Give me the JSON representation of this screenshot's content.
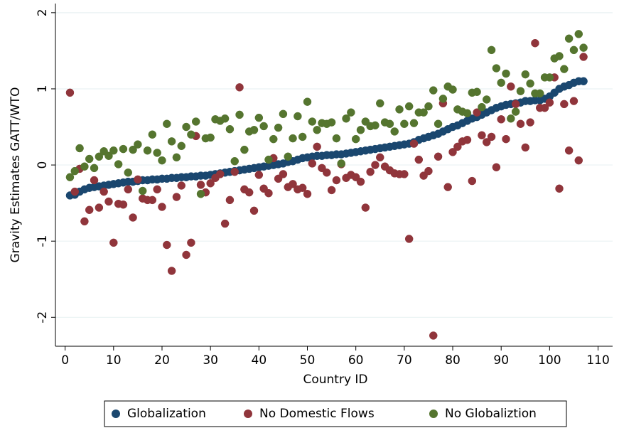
{
  "chart_data": {
    "type": "scatter",
    "x_label": "Country ID",
    "y_label": "Gravity Estimates GATT/WTO",
    "xlim": [
      -2,
      113
    ],
    "ylim": [
      -2.38,
      2.12
    ],
    "xticks": [
      0,
      10,
      20,
      30,
      40,
      50,
      60,
      70,
      80,
      90,
      100,
      110
    ],
    "yticks": [
      -2,
      -1,
      0,
      1,
      2
    ],
    "grid": true,
    "legend": "bottom",
    "x": [
      1,
      2,
      3,
      4,
      5,
      6,
      7,
      8,
      9,
      10,
      11,
      12,
      13,
      14,
      15,
      16,
      17,
      18,
      19,
      20,
      21,
      22,
      23,
      24,
      25,
      26,
      27,
      28,
      29,
      30,
      31,
      32,
      33,
      34,
      35,
      36,
      37,
      38,
      39,
      40,
      41,
      42,
      43,
      44,
      45,
      46,
      47,
      48,
      49,
      50,
      51,
      52,
      53,
      54,
      55,
      56,
      57,
      58,
      59,
      60,
      61,
      62,
      63,
      64,
      65,
      66,
      67,
      68,
      69,
      70,
      71,
      72,
      73,
      74,
      75,
      76,
      77,
      78,
      79,
      80,
      81,
      82,
      83,
      84,
      85,
      86,
      87,
      88,
      89,
      90,
      91,
      92,
      93,
      94,
      95,
      96,
      97,
      98,
      99,
      100,
      101,
      102,
      103,
      104,
      105,
      106,
      107
    ],
    "series": [
      {
        "name": "Globalization",
        "color": "#1a476f",
        "values": [
          -0.4,
          -0.39,
          -0.35,
          -0.32,
          -0.3,
          -0.29,
          -0.28,
          -0.27,
          -0.26,
          -0.25,
          -0.24,
          -0.23,
          -0.22,
          -0.22,
          -0.21,
          -0.2,
          -0.2,
          -0.19,
          -0.19,
          -0.18,
          -0.18,
          -0.17,
          -0.17,
          -0.16,
          -0.16,
          -0.15,
          -0.15,
          -0.14,
          -0.14,
          -0.13,
          -0.12,
          -0.11,
          -0.1,
          -0.09,
          -0.08,
          -0.07,
          -0.06,
          -0.05,
          -0.04,
          -0.03,
          -0.02,
          -0.01,
          0.0,
          0.01,
          0.02,
          0.04,
          0.05,
          0.07,
          0.09,
          0.1,
          0.11,
          0.12,
          0.12,
          0.13,
          0.13,
          0.14,
          0.14,
          0.15,
          0.16,
          0.17,
          0.18,
          0.19,
          0.2,
          0.21,
          0.22,
          0.23,
          0.24,
          0.25,
          0.26,
          0.27,
          0.28,
          0.3,
          0.33,
          0.35,
          0.37,
          0.39,
          0.41,
          0.44,
          0.47,
          0.5,
          0.52,
          0.55,
          0.58,
          0.61,
          0.63,
          0.66,
          0.69,
          0.72,
          0.75,
          0.77,
          0.79,
          0.8,
          0.81,
          0.82,
          0.84,
          0.84,
          0.85,
          0.85,
          0.87,
          0.9,
          0.95,
          1.0,
          1.03,
          1.05,
          1.08,
          1.1,
          1.1
        ]
      },
      {
        "name": "No Domestic Flows",
        "color": "#90353b",
        "values": [
          0.95,
          -0.35,
          -0.05,
          -0.74,
          -0.59,
          -0.2,
          -0.56,
          -0.35,
          -0.48,
          -1.02,
          -0.51,
          -0.52,
          -0.32,
          -0.69,
          -0.19,
          -0.44,
          -0.46,
          -0.46,
          -0.32,
          -0.55,
          -1.05,
          -1.39,
          -0.42,
          -0.27,
          -1.18,
          -1.02,
          0.38,
          -0.26,
          -0.36,
          -0.24,
          -0.17,
          -0.12,
          -0.77,
          -0.46,
          -0.09,
          1.02,
          -0.32,
          -0.36,
          -0.6,
          -0.13,
          -0.31,
          -0.37,
          0.09,
          -0.18,
          -0.12,
          -0.29,
          -0.25,
          -0.32,
          -0.3,
          -0.38,
          0.02,
          0.24,
          -0.04,
          -0.1,
          -0.33,
          -0.2,
          0.01,
          -0.17,
          -0.13,
          -0.16,
          -0.22,
          -0.56,
          -0.09,
          0.0,
          0.1,
          -0.02,
          -0.07,
          -0.11,
          -0.12,
          -0.12,
          -0.97,
          0.28,
          0.07,
          -0.14,
          -0.08,
          -2.24,
          0.11,
          0.81,
          -0.29,
          0.17,
          0.24,
          0.31,
          0.33,
          -0.21,
          0.69,
          0.39,
          0.3,
          0.37,
          -0.03,
          0.6,
          0.34,
          1.03,
          0.8,
          0.54,
          0.23,
          0.56,
          1.6,
          0.75,
          0.75,
          0.82,
          1.15,
          -0.31,
          0.8,
          0.19,
          0.84,
          0.06,
          1.42
        ]
      },
      {
        "name": "No Globaliztion",
        "color": "#55752f",
        "values": [
          -0.16,
          -0.08,
          0.22,
          -0.02,
          0.08,
          -0.04,
          0.11,
          0.18,
          0.12,
          0.19,
          0.01,
          0.21,
          -0.1,
          0.2,
          0.27,
          -0.34,
          0.19,
          0.4,
          0.16,
          0.06,
          0.54,
          0.31,
          0.1,
          0.25,
          0.5,
          0.4,
          0.57,
          -0.38,
          0.35,
          0.36,
          0.6,
          0.58,
          0.61,
          0.47,
          0.05,
          0.66,
          0.2,
          0.44,
          0.46,
          0.62,
          0.51,
          0.07,
          0.34,
          0.49,
          0.67,
          0.11,
          0.35,
          0.64,
          0.37,
          0.83,
          0.57,
          0.46,
          0.55,
          0.54,
          0.56,
          0.35,
          0.02,
          0.61,
          0.69,
          0.34,
          0.46,
          0.57,
          0.51,
          0.52,
          0.81,
          0.56,
          0.54,
          0.44,
          0.73,
          0.54,
          0.77,
          0.55,
          0.69,
          0.69,
          0.77,
          0.98,
          0.54,
          0.87,
          1.03,
          0.99,
          0.73,
          0.7,
          0.68,
          0.95,
          0.96,
          0.76,
          0.86,
          1.51,
          1.27,
          1.08,
          1.2,
          0.61,
          0.7,
          0.97,
          1.19,
          1.07,
          0.94,
          0.94,
          1.15,
          1.15,
          1.4,
          1.43,
          1.26,
          1.66,
          1.51,
          1.72,
          1.54
        ]
      }
    ]
  }
}
